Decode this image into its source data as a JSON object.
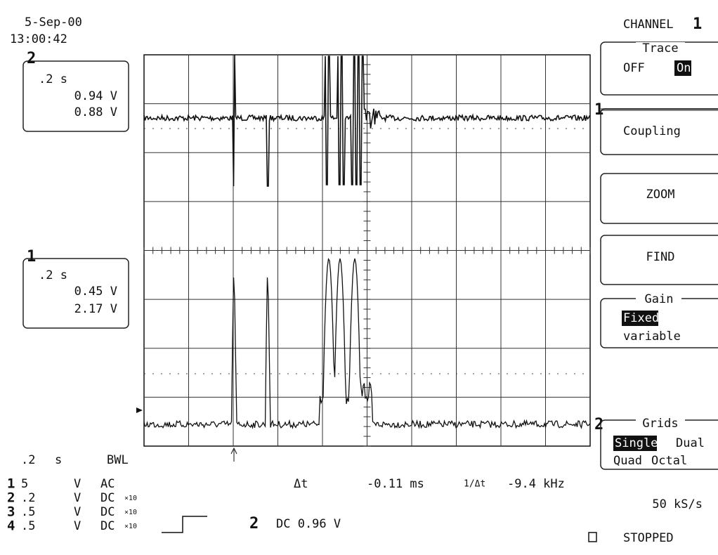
{
  "header": {
    "date": "5-Sep-00",
    "time": "13:00:42"
  },
  "trace_boxes": [
    {
      "label": "2",
      "timebase": ".2 s",
      "value_1": "0.94 V",
      "value_2": "0.88 V"
    },
    {
      "label": "1",
      "timebase": ".2 s",
      "value_1": "0.45 V",
      "value_2": "2.17 V"
    }
  ],
  "grid_markers": {
    "trace_1": "1",
    "trace_2": "2"
  },
  "side_menu": {
    "title": "CHANNEL",
    "channel": "1",
    "trace": {
      "title": "Trace",
      "options": [
        "OFF",
        "On"
      ]
    },
    "coupling": "Coupling",
    "zoom": "ZOOM",
    "find": "FIND",
    "gain": {
      "title": "Gain",
      "options": [
        "Fixed",
        "variable"
      ]
    },
    "grids": {
      "title": "Grids",
      "options": [
        "Single",
        "Dual",
        "Quad",
        "Octal"
      ]
    },
    "sample_rate": "50 kS/s",
    "status": "STOPPED"
  },
  "bottom": {
    "timebase": ".2",
    "timebase_unit": "s",
    "bwl": "BWL",
    "channels": [
      {
        "number": "1",
        "scale": "5",
        "unit": "V",
        "coupling": "AC"
      },
      {
        "number": "2",
        "scale": ".2",
        "unit": "V",
        "coupling": "DC",
        "probe": "×10"
      },
      {
        "number": "3",
        "scale": ".5",
        "unit": "V",
        "coupling": "DC",
        "probe": "×10"
      },
      {
        "number": "4",
        "scale": ".5",
        "unit": "V",
        "coupling": "DC",
        "probe": "×10"
      }
    ],
    "delta_t_label": "Δt",
    "delta_t": "-0.11 ms",
    "inverse_label": "1/Δt",
    "inverse": "-9.4 kHz",
    "trigger_channel": "2",
    "trigger": "DC 0.96 V"
  }
}
